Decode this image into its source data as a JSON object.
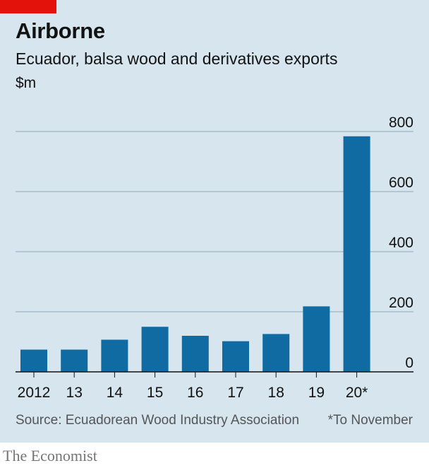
{
  "header": {
    "title": "Airborne",
    "subtitle": "Ecuador, balsa wood and derivatives exports",
    "unit": "$m"
  },
  "chart_data": {
    "type": "bar",
    "title": "Airborne",
    "subtitle": "Ecuador, balsa wood and derivatives exports",
    "ylabel": "$m",
    "xlabel": "",
    "categories": [
      "2012",
      "13",
      "14",
      "15",
      "16",
      "17",
      "18",
      "19",
      "20*"
    ],
    "values": [
      74,
      74,
      107,
      150,
      120,
      102,
      126,
      218,
      784
    ],
    "ylim": [
      0,
      800
    ],
    "yticks": [
      0,
      200,
      400,
      600,
      800
    ],
    "grid": true,
    "bar_color": "#0f6ba1"
  },
  "footer": {
    "source": "Source: Ecuadorean Wood Industry Association",
    "footnote": "*To November",
    "brand": "The Economist"
  },
  "colors": {
    "background": "#d6e5ee",
    "accent_red": "#e3120b",
    "bar": "#0f6ba1",
    "grid": "#9fb3c0"
  }
}
